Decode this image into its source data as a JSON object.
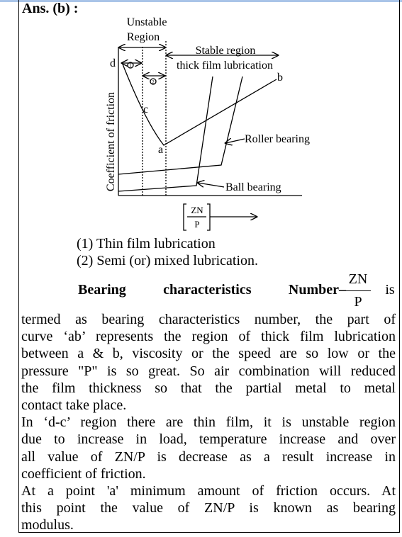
{
  "header": {
    "answer": "Ans. (b) :"
  },
  "diagram": {
    "unstable": [
      "Unstable",
      "Region"
    ],
    "stable": [
      "Stable region",
      "thick film lubrication"
    ],
    "points": {
      "d": "d",
      "c": "c",
      "a": "a",
      "b": "b"
    },
    "roller": "Roller bearing",
    "ball": "Ball bearing",
    "y_axis": "Coefficient of friction",
    "x_num": "ZN",
    "x_den": "P",
    "circle1": "1",
    "circle2": "2"
  },
  "list": [
    "(1) Thin film lubrication",
    "(2) Semi (or) mixed lubrication."
  ],
  "definition": {
    "lead": "Bearing characteristics Number–",
    "num": "ZN",
    "den": "P",
    "tail": "is"
  },
  "paragraphs": [
    [
      "termed as bearing characteristics number, the part of",
      "curve ‘ab’ represents the region of thick film lubrication",
      "between a & b, viscosity or the speed are so low or the",
      "pressure \"P\" is so great. So air combination will reduced",
      "the film thickness so that the partial metal to metal",
      "contact take place."
    ],
    [
      "In ‘d-c’ region there are thin film, it is unstable region",
      "due to increase in load, temperature increase and over",
      "all value of ZN/P is decrease as a result increase in",
      "coefficient of friction."
    ],
    [
      "At a point 'a' minimum amount of friction occurs. At",
      "this point the value of ZN/P is known as bearing",
      "modulus."
    ]
  ]
}
